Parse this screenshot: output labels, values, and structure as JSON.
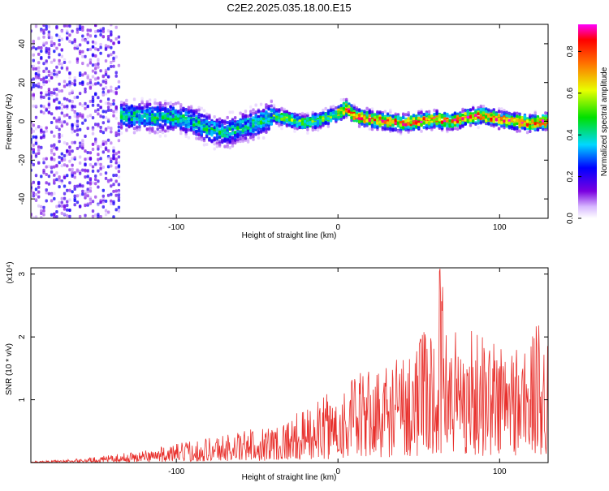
{
  "title": "C2E2.2025.035.18.00.E15",
  "chart_data": [
    {
      "type": "heatmap",
      "xlabel": "Height of straight line (km)",
      "ylabel": "Frequency (Hz)",
      "xlim": [
        -190,
        130
      ],
      "ylim": [
        -50,
        50
      ],
      "xticks": [
        -100,
        0,
        100
      ],
      "yticks": [
        -40,
        -20,
        0,
        20,
        40
      ],
      "colorbar": {
        "label": "Normalized spectral amplitude",
        "range": [
          0,
          0.93
        ],
        "ticks": [
          0.0,
          0.2,
          0.4,
          0.6,
          0.8
        ]
      },
      "ridge": {
        "x": [
          -130,
          -110,
          -100,
          -90,
          -80,
          -70,
          -60,
          -50,
          -40,
          -30,
          -20,
          -10,
          0,
          5,
          10,
          20,
          30,
          40,
          50,
          60,
          70,
          80,
          90,
          100,
          110,
          120,
          130
        ],
        "frequency": [
          3,
          2,
          2,
          0,
          -4,
          -6,
          -3,
          -1,
          3,
          1,
          -1,
          1,
          4,
          7,
          3,
          1,
          0,
          -1,
          0,
          1,
          0,
          2,
          3,
          1,
          0,
          -1,
          0
        ]
      },
      "grid": false
    },
    {
      "type": "line",
      "xlabel": "Height of straight line (km)",
      "ylabel": "SNR (10 * v/v)",
      "yscale_label": "(x10⁴)",
      "xlim": [
        -190,
        130
      ],
      "ylim": [
        0,
        3.1
      ],
      "xticks": [
        -100,
        0,
        100
      ],
      "yticks": [
        1,
        2,
        3
      ],
      "series": [
        {
          "color": "#e8302c",
          "envelope_x": [
            -190,
            -160,
            -140,
            -120,
            -100,
            -80,
            -60,
            -40,
            -20,
            -10,
            0,
            10,
            20,
            30,
            40,
            50,
            60,
            63,
            70,
            80,
            90,
            100,
            110,
            120,
            125,
            130
          ],
          "envelope_peak": [
            0.02,
            0.06,
            0.12,
            0.2,
            0.3,
            0.42,
            0.5,
            0.62,
            0.85,
            1.05,
            1.2,
            1.4,
            1.5,
            1.6,
            1.8,
            2.05,
            2.2,
            3.1,
            2.3,
            2.2,
            2.1,
            2.0,
            2.0,
            2.1,
            2.3,
            2.35
          ]
        }
      ],
      "grid": false
    }
  ]
}
